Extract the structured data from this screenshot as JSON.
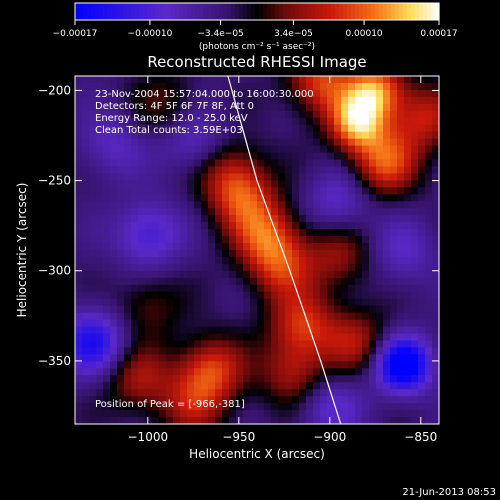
{
  "chart_data": {
    "type": "heatmap",
    "title": "Reconstructed RHESSI Image",
    "xlabel": "Heliocentric X (arcsec)",
    "ylabel": "Heliocentric Y (arcsec)",
    "xlim": [
      -1040,
      -840
    ],
    "ylim": [
      -385,
      -192
    ],
    "xticks": [
      -1000,
      -950,
      -900,
      -850
    ],
    "xtick_labels": [
      "−1000",
      "−950",
      "−900",
      "−850"
    ],
    "yticks": [
      -200,
      -250,
      -300,
      -350
    ],
    "ytick_labels": [
      "−200",
      "−250",
      "−300",
      "−350"
    ],
    "colorbar": {
      "range": [
        -0.00017,
        0.00017
      ],
      "ticks": [
        -0.00017,
        -0.0001,
        -3.4e-05,
        3.4e-05,
        0.0001,
        0.00017
      ],
      "tick_labels": [
        "−0.00017",
        "−0.00010",
        "−3.4e−05",
        "3.4e−05",
        "0.00010",
        "0.00017"
      ],
      "unit_label": "(photons cm⁻² s⁻¹ asec⁻²)"
    },
    "annotations": [
      "23-Nov-2004 15:57:04.000 to 16:00:30.000",
      "Detectors: 4F 5F 6F 7F 8F, Att 0",
      "Energy Range: 12.0 - 25.0 keV",
      "Clean     Total counts: 3.59E+03"
    ],
    "peak_label": "Position of Peak = [-966,-381]",
    "peak_position": [
      -966,
      -381
    ],
    "limb_curve": [
      [
        -956,
        -192
      ],
      [
        -940,
        -250
      ],
      [
        -922,
        -300
      ],
      [
        -905,
        -350
      ],
      [
        -894,
        -385
      ]
    ],
    "sources": [
      {
        "x": -875,
        "y": -200,
        "value": 0.00014
      },
      {
        "x": -905,
        "y": -195,
        "value": 0.00011
      },
      {
        "x": -885,
        "y": -218,
        "value": 0.00015
      },
      {
        "x": -870,
        "y": -240,
        "value": 0.00012
      },
      {
        "x": -848,
        "y": -215,
        "value": 9e-05
      },
      {
        "x": -948,
        "y": -260,
        "value": 9e-05
      },
      {
        "x": -955,
        "y": -245,
        "value": 7e-05
      },
      {
        "x": -935,
        "y": -280,
        "value": 0.0001
      },
      {
        "x": -927,
        "y": -298,
        "value": 9e-05
      },
      {
        "x": -915,
        "y": -330,
        "value": 0.0001
      },
      {
        "x": -920,
        "y": -357,
        "value": 8e-05
      },
      {
        "x": -965,
        "y": -355,
        "value": 0.00011
      },
      {
        "x": -1005,
        "y": -360,
        "value": 8e-05
      },
      {
        "x": -975,
        "y": -375,
        "value": 7e-05
      },
      {
        "x": -885,
        "y": -340,
        "value": 8e-05
      },
      {
        "x": -895,
        "y": -292,
        "value": 7e-05
      },
      {
        "x": -990,
        "y": -208,
        "value": 5e-05
      },
      {
        "x": -1000,
        "y": -320,
        "value": 5e-05
      },
      {
        "x": -860,
        "y": -352,
        "value": -0.00017
      },
      {
        "x": -1030,
        "y": -340,
        "value": -0.00011
      },
      {
        "x": -1000,
        "y": -280,
        "value": -8e-05
      },
      {
        "x": -895,
        "y": -262,
        "value": -6e-05
      },
      {
        "x": -1020,
        "y": -230,
        "value": -5e-05
      },
      {
        "x": -900,
        "y": -375,
        "value": -6e-05
      },
      {
        "x": -975,
        "y": -228,
        "value": -6e-05
      },
      {
        "x": -860,
        "y": -290,
        "value": -5e-05
      }
    ],
    "grid": false
  },
  "footer": {
    "date_stamp": "21-Jun-2013 08:53"
  }
}
